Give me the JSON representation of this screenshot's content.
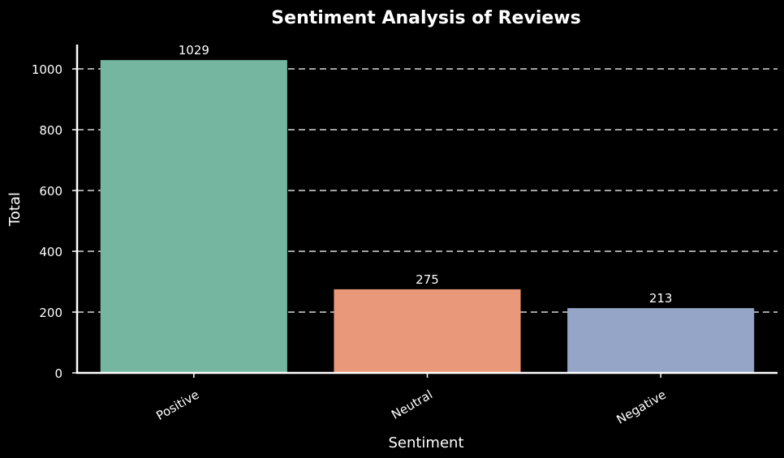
{
  "chart_data": {
    "type": "bar",
    "title": "Sentiment Analysis of Reviews",
    "xlabel": "Sentiment",
    "ylabel": "Total",
    "categories": [
      "Positive",
      "Neutral",
      "Negative"
    ],
    "values": [
      1029,
      275,
      213
    ],
    "value_labels": [
      "1029",
      "275",
      "213"
    ],
    "colors": [
      "#74b6a0",
      "#e99879",
      "#95a5c7"
    ],
    "ylim": [
      0,
      1080
    ],
    "yticks": [
      0,
      200,
      400,
      600,
      800,
      1000
    ],
    "ytick_labels": [
      "0",
      "200",
      "400",
      "600",
      "800",
      "1000"
    ],
    "grid": true,
    "grid_axis": "y",
    "grid_style": "dashed",
    "legend": false
  }
}
